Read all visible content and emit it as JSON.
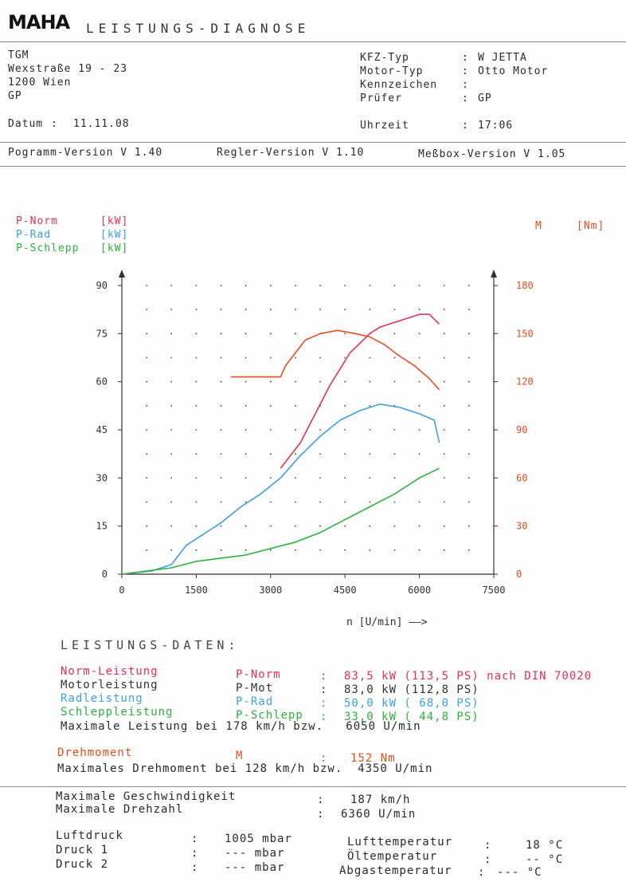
{
  "header": {
    "logo": "MAHA",
    "title": "LEISTUNGS-DIAGNOSE",
    "company": [
      "TGM",
      "Wexstraße 19 - 23",
      "1200 Wien",
      "GP"
    ],
    "date_label": "Datum",
    "date_value": "11.11.08",
    "vehicle_fields": [
      {
        "label": "KFZ-Typ",
        "value": "W JETTA"
      },
      {
        "label": "Motor-Typ",
        "value": "Otto Motor"
      },
      {
        "label": "Kennzeichen",
        "value": ""
      },
      {
        "label": "Prüfer",
        "value": "GP"
      }
    ],
    "time_label": "Uhrzeit",
    "time_value": "17:06",
    "versions": [
      "Pogramm-Version V 1.40",
      "Regler-Version V 1.10",
      "Meßbox-Version V 1.05"
    ]
  },
  "legend": {
    "left": [
      {
        "name": "P-Norm",
        "unit": "[kW]",
        "color": "#e0325a"
      },
      {
        "name": "P-Rad",
        "unit": "[kW]",
        "color": "#3fa0e0"
      },
      {
        "name": "P-Schlepp",
        "unit": "[kW]",
        "color": "#2fb040"
      }
    ],
    "right": {
      "name": "M",
      "unit": "[Nm]",
      "color": "#e05020"
    }
  },
  "chart_data": {
    "type": "line",
    "xlabel": "n [U/min] ——>",
    "x_ticks": [
      "0",
      "1500",
      "3000",
      "4500",
      "6000",
      "7500"
    ],
    "xlim": [
      0,
      7500
    ],
    "y_left_ticks": [
      "0",
      "15",
      "30",
      "45",
      "60",
      "75",
      "90"
    ],
    "ylim_left": [
      0,
      90
    ],
    "y_right_ticks": [
      "0",
      "30",
      "60",
      "90",
      "120",
      "150",
      "180"
    ],
    "ylim_right": [
      0,
      180
    ],
    "grid": "dotted",
    "series": [
      {
        "name": "P-Norm",
        "axis": "left",
        "color": "#e0325a",
        "x": [
          3200,
          3400,
          3600,
          3800,
          4000,
          4200,
          4400,
          4600,
          4800,
          5000,
          5200,
          5400,
          5600,
          5800,
          6000,
          6200,
          6400
        ],
        "y": [
          33,
          37,
          41,
          47,
          53,
          59,
          64,
          69,
          72,
          75,
          77,
          78,
          79,
          80,
          81,
          81,
          78
        ]
      },
      {
        "name": "P-Rad",
        "axis": "left",
        "color": "#3fa0e0",
        "x": [
          0,
          600,
          1000,
          1300,
          1600,
          2000,
          2400,
          2800,
          3200,
          3600,
          4000,
          4400,
          4800,
          5200,
          5600,
          6000,
          6300,
          6400
        ],
        "y": [
          0,
          1,
          3,
          9,
          12,
          16,
          21,
          25,
          30,
          37,
          43,
          48,
          51,
          53,
          52,
          50,
          48,
          41
        ]
      },
      {
        "name": "P-Schlepp",
        "axis": "left",
        "color": "#2fb040",
        "x": [
          0,
          500,
          1000,
          1500,
          2000,
          2500,
          3000,
          3500,
          4000,
          4500,
          5000,
          5500,
          6000,
          6400
        ],
        "y": [
          0,
          1,
          2,
          4,
          5,
          6,
          8,
          10,
          13,
          17,
          21,
          25,
          30,
          33
        ]
      },
      {
        "name": "M",
        "axis": "right",
        "color": "#e05020",
        "x": [
          2200,
          2500,
          2800,
          3000,
          3200,
          3300,
          3500,
          3700,
          4000,
          4350,
          4700,
          5000,
          5300,
          5600,
          5900,
          6200,
          6400
        ],
        "y": [
          123,
          123,
          123,
          123,
          123,
          130,
          138,
          146,
          150,
          152,
          150,
          148,
          143,
          136,
          130,
          122,
          115
        ]
      }
    ]
  },
  "data_section": {
    "title": "LEISTUNGS-DATEN:",
    "rows": [
      {
        "label": "Norm-Leistung",
        "sym": "P-Norm",
        "sep": ":",
        "value": "83,5 kW (113,5 PS) nach DIN 70020",
        "color": "#e0325a"
      },
      {
        "label": "Motorleistung",
        "sym": "P-Mot",
        "sep": ":",
        "value": "83,0 kW (112,8 PS)",
        "color": "#333333"
      },
      {
        "label": "Radleistung",
        "sym": "P-Rad",
        "sep": ":",
        "value": "50,0 kW ( 68,0 PS)",
        "color": "#3fa0e0"
      },
      {
        "label": "Schleppleistung",
        "sym": "P-Schlepp",
        "sep": ":",
        "value": "33,0 kW ( 44,8 PS)",
        "color": "#2fb040"
      }
    ],
    "max_power": "Maximale Leistung bei 178 km/h bzw.   6050 U/min",
    "torque": {
      "label": "Drehmoment",
      "sym": "M",
      "sep": ":",
      "value": "152 Nm",
      "color": "#e05020"
    },
    "max_torque": "Maximales Drehmoment bei 128 km/h bzw.  4350 U/min",
    "max_speed_label": "Maximale Geschwindigkeit",
    "max_speed_value": "187 km/h",
    "max_rpm_label": "Maximale Drehzahl",
    "max_rpm_value": "6360 U/min"
  },
  "conditions": {
    "left": [
      {
        "label": "Luftdruck",
        "value": "1005 mbar"
      },
      {
        "label": "Druck 1",
        "value": "--- mbar"
      },
      {
        "label": "Druck 2",
        "value": "--- mbar"
      }
    ],
    "right": [
      {
        "label": "Lufttemperatur",
        "value": "18 °C"
      },
      {
        "label": "Öltemperatur",
        "value": "-- °C"
      },
      {
        "label": "Abgastemperatur",
        "value": "--- °C"
      }
    ]
  }
}
